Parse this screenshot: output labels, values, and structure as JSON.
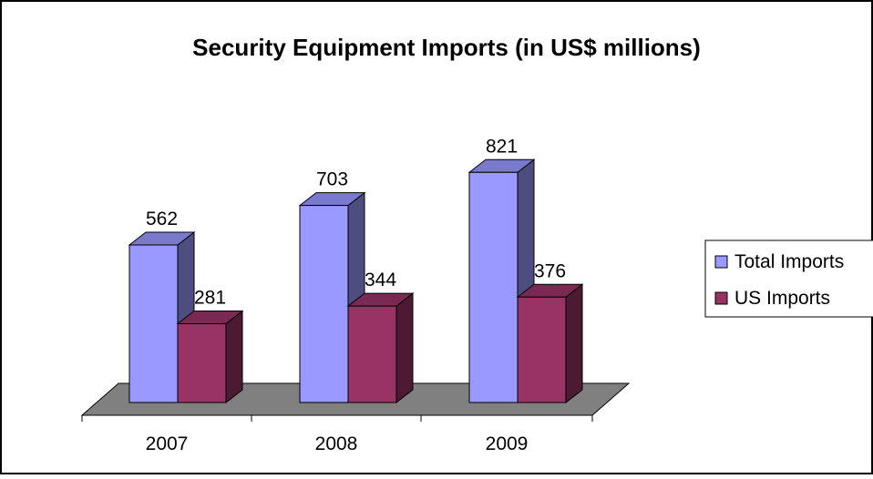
{
  "chart_data": {
    "type": "bar",
    "title": "Security Equipment Imports (in US$ millions)",
    "xlabel": "",
    "ylabel": "",
    "categories": [
      "2007",
      "2008",
      "2009"
    ],
    "series": [
      {
        "name": "Total Imports",
        "values": [
          562,
          703,
          821
        ],
        "color": "#9999FF",
        "side_color": "#4D4D80",
        "top_color": "#7A7ACC"
      },
      {
        "name": "US Imports",
        "values": [
          281,
          344,
          376
        ],
        "color": "#993366",
        "side_color": "#4D1A33",
        "top_color": "#7A2952"
      }
    ],
    "ylim": [
      0,
      900
    ],
    "grid": false,
    "legend_position": "right",
    "style": "3d-clustered-column",
    "floor_color": "#808080"
  }
}
